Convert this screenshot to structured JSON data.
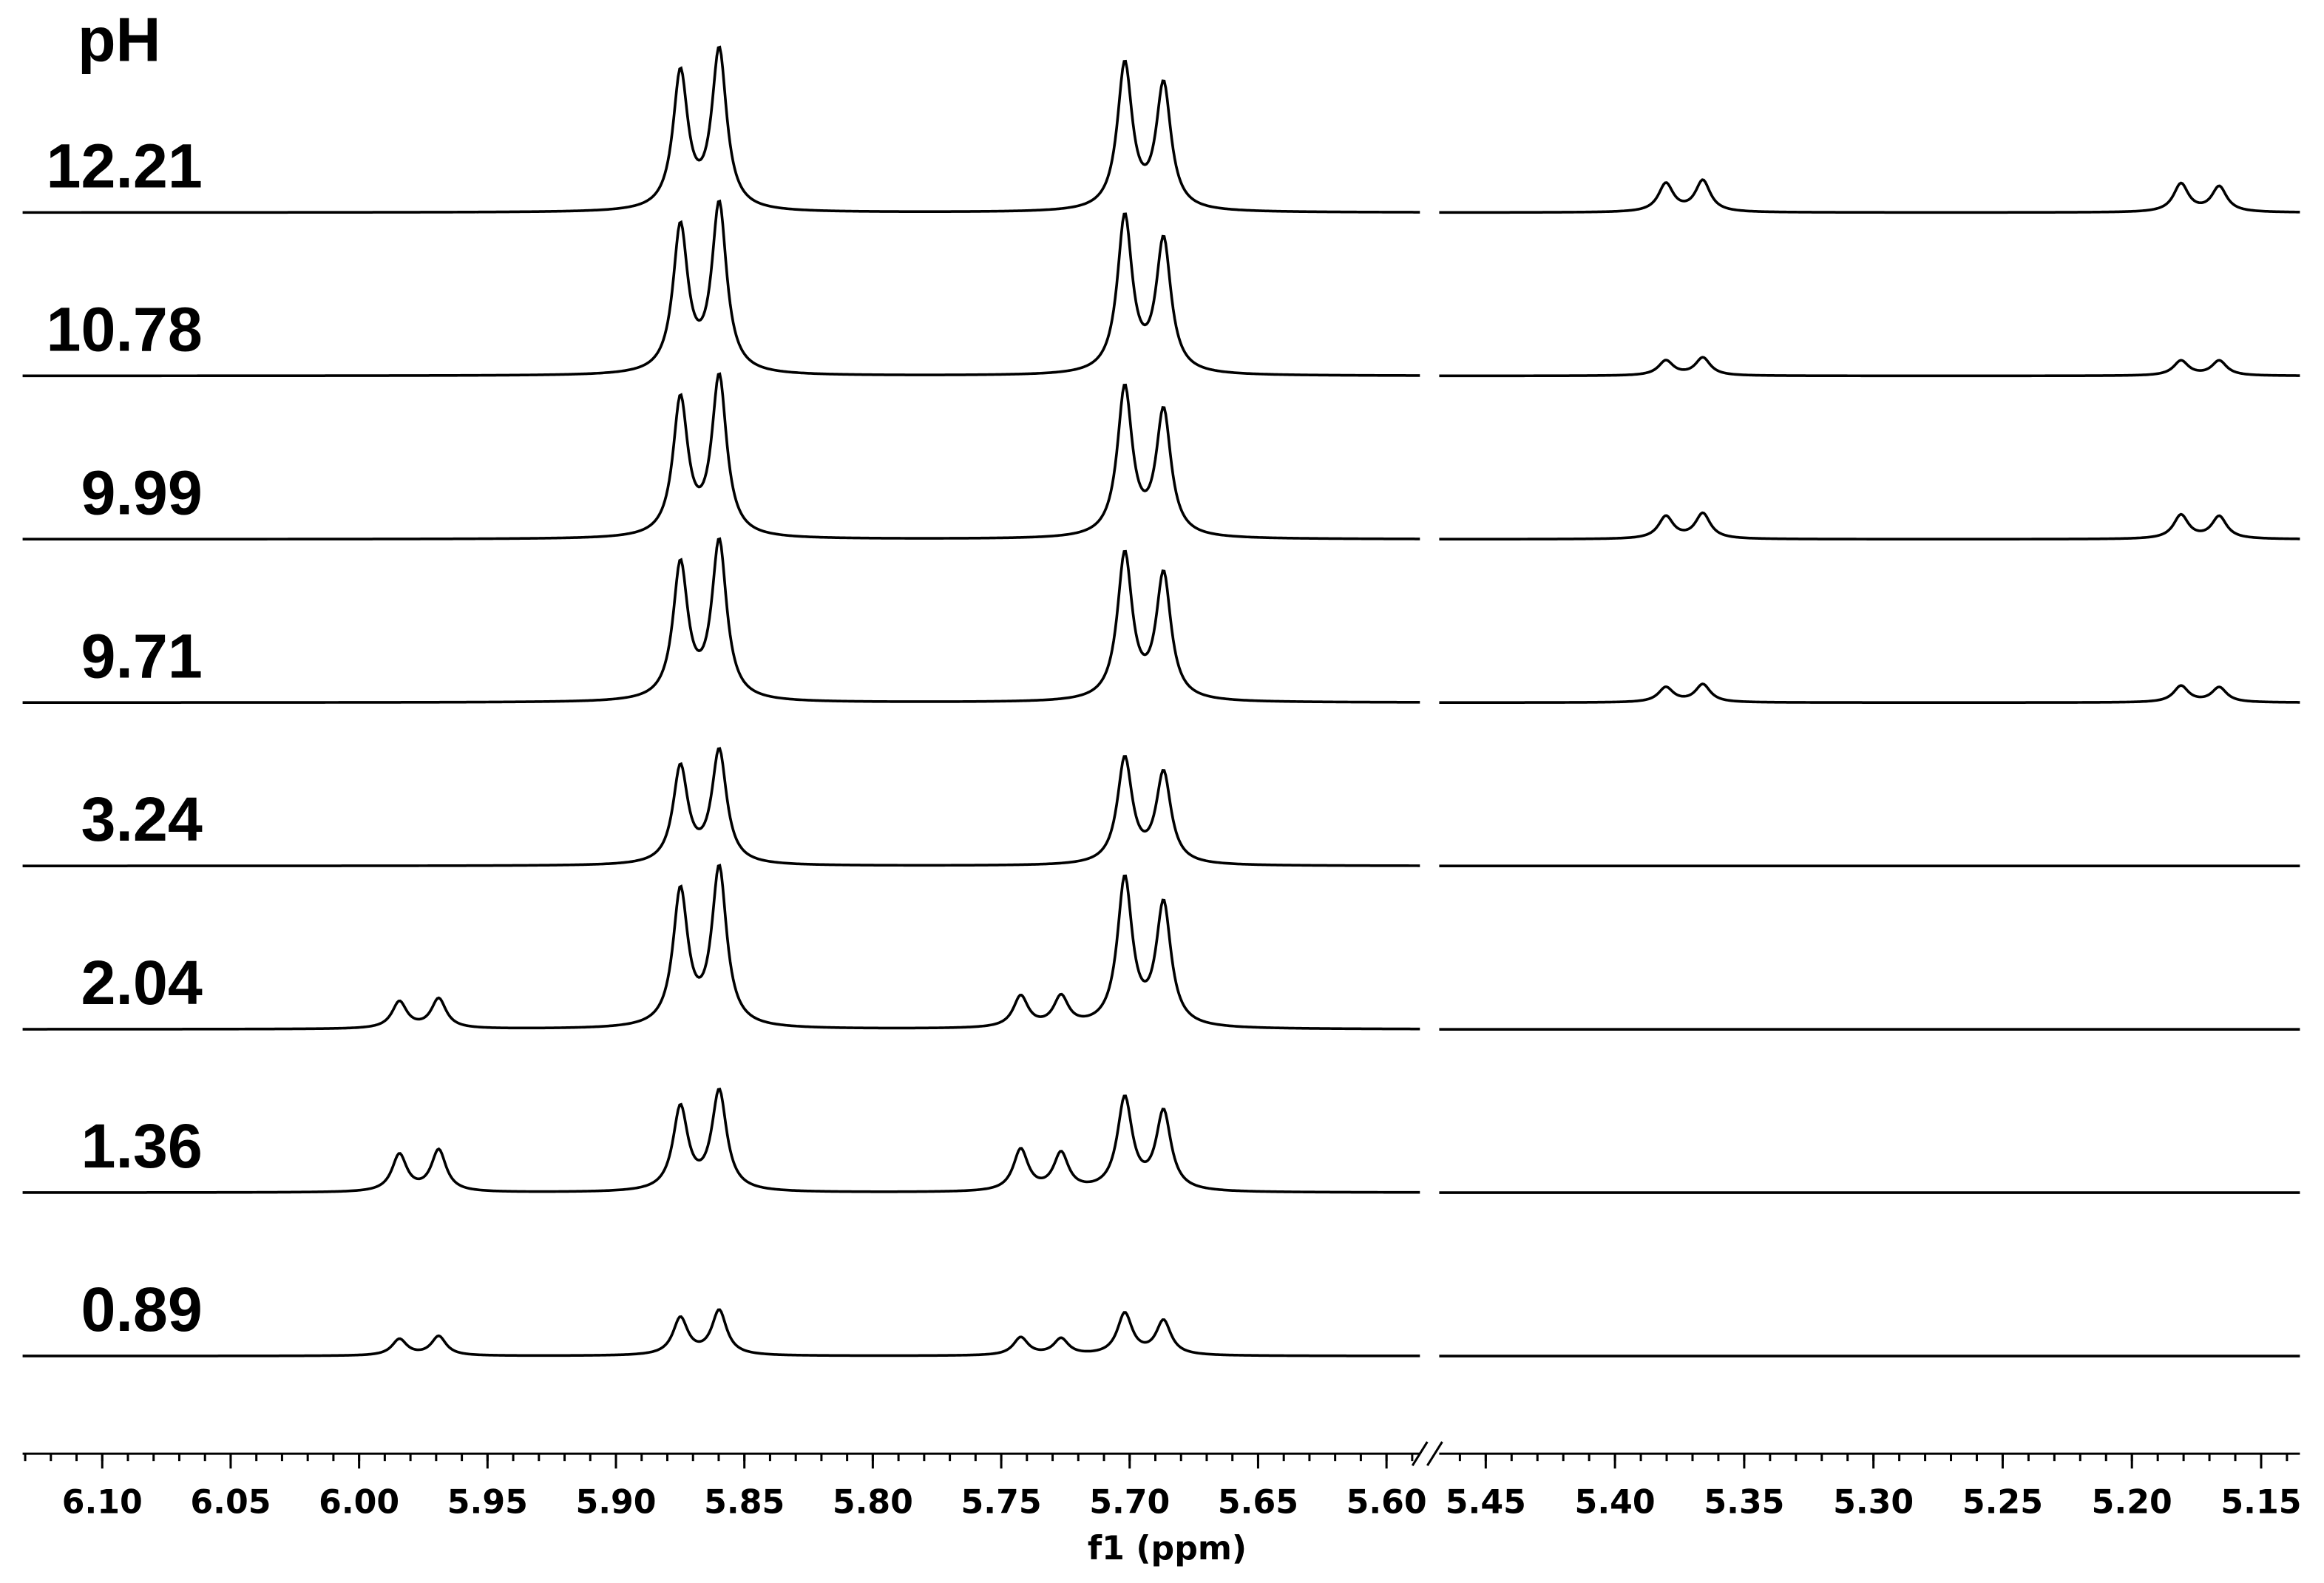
{
  "chart_data": {
    "type": "nmr-stack",
    "title": "pH",
    "xlabel": "f1 (ppm)",
    "segments": [
      {
        "xlim": [
          6.131,
          5.587
        ],
        "xticks": [
          {
            "value": 6.1,
            "label": "6.10"
          },
          6.05,
          {
            "value": 6.0,
            "label": "6.00"
          },
          5.95,
          {
            "value": 5.9,
            "label": "5.90"
          },
          5.85,
          {
            "value": 5.8,
            "label": "5.80"
          },
          5.75,
          {
            "value": 5.7,
            "label": "5.70"
          },
          5.65,
          {
            "value": 5.6,
            "label": "5.60"
          }
        ],
        "minor_tick_step": 0.01
      },
      {
        "xlim": [
          5.468,
          5.135
        ],
        "xticks": [
          5.45,
          {
            "value": 5.4,
            "label": "5.40"
          },
          5.35,
          {
            "value": 5.3,
            "label": "5.30"
          },
          5.25,
          {
            "value": 5.2,
            "label": "5.20"
          },
          5.15
        ],
        "minor_tick_step": 0.01
      }
    ],
    "series": [
      {
        "name": "12.21",
        "x": [
          5.8749,
          5.8598,
          5.7019,
          5.6868,
          5.3803,
          5.366,
          5.181,
          5.1662
        ],
        "values": [
          92,
          107,
          98,
          84,
          19,
          21,
          19,
          17
        ]
      },
      {
        "name": "10.78",
        "x": [
          5.8749,
          5.8598,
          5.7019,
          5.6868,
          5.3803,
          5.366,
          5.181,
          5.1662
        ],
        "values": [
          98,
          113,
          105,
          89,
          10,
          12,
          10,
          10
        ]
      },
      {
        "name": "9.99",
        "x": [
          5.8749,
          5.8598,
          5.7019,
          5.6868,
          5.3803,
          5.366,
          5.181,
          5.1662
        ],
        "values": [
          92,
          107,
          100,
          84,
          15,
          17,
          16,
          15
        ]
      },
      {
        "name": "9.71",
        "x": [
          5.8749,
          5.8598,
          5.7019,
          5.6868,
          5.3803,
          5.366,
          5.181,
          5.1662
        ],
        "values": [
          91,
          106,
          98,
          84,
          10,
          12,
          11,
          10
        ]
      },
      {
        "name": "3.24",
        "x": [
          5.8749,
          5.8598,
          5.7019,
          5.6868
        ],
        "values": [
          65,
          76,
          71,
          61
        ]
      },
      {
        "name": "2.04",
        "x": [
          5.9843,
          5.969,
          5.8749,
          5.8598,
          5.7424,
          5.7267,
          5.7019,
          5.6868
        ],
        "values": [
          18,
          20,
          91,
          106,
          21,
          20,
          99,
          82
        ]
      },
      {
        "name": "1.36",
        "x": [
          5.9843,
          5.969,
          5.8749,
          5.8598,
          5.7424,
          5.7267,
          5.7019,
          5.6868
        ],
        "values": [
          25,
          28,
          56,
          67,
          28,
          25,
          62,
          53
        ]
      },
      {
        "name": "0.89",
        "x": [
          5.9843,
          5.969,
          5.8749,
          5.8598,
          5.7424,
          5.7267,
          5.7019,
          5.6868
        ],
        "values": [
          11,
          13,
          25,
          30,
          12,
          11,
          28,
          23
        ]
      }
    ]
  }
}
